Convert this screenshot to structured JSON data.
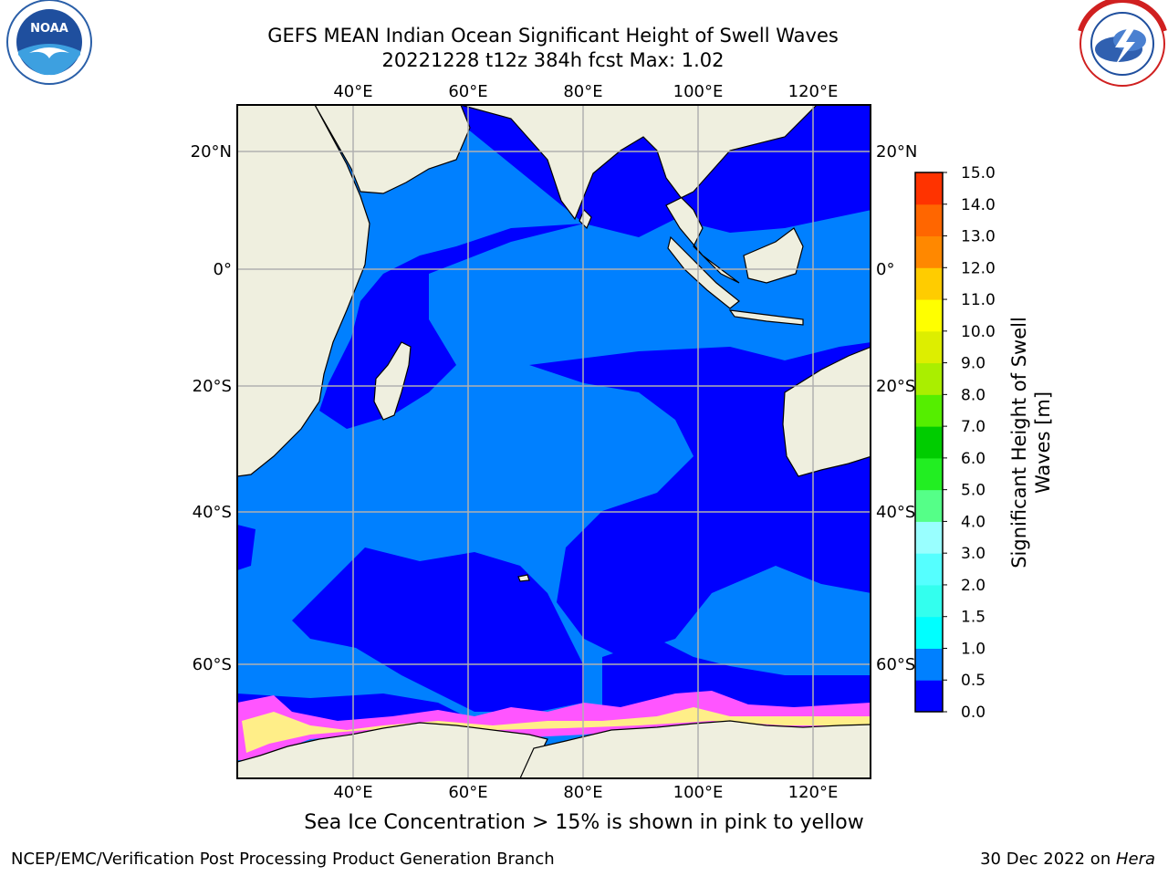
{
  "title_line1": "GEFS MEAN Indian Ocean Significant Height of Swell Waves",
  "title_line2": "20221228 t12z 384h fcst   Max: 1.02",
  "footer_note": "Sea Ice Concentration > 15% is shown in pink to yellow",
  "footer_left": "NCEP/EMC/Verification Post Processing Product Generation Branch",
  "footer_date": "30 Dec 2022 on ",
  "footer_host": "Hera",
  "logo_left": {
    "label": "NOAA",
    "ring_text": "NATIONAL OCEANIC AND ATMOSPHERIC ADMINISTRATION · U.S. DEPARTMENT OF COMMERCE"
  },
  "logo_right": {
    "ring_text": "NATIONAL WEATHER SERVICE"
  },
  "map": {
    "lon_labels": [
      "40°E",
      "60°E",
      "80°E",
      "100°E",
      "120°E"
    ],
    "lat_labels_left": [
      "20°N",
      "0°",
      "20°S",
      "40°S",
      "60°S"
    ],
    "lat_labels_right": [
      "20°N",
      "0°",
      "20°S",
      "40°S",
      "60°S"
    ],
    "colors": {
      "land": "#efefdf",
      "ocean_low": "#0000ff",
      "ocean_mid": "#0080ff",
      "ice_pink": "#ff55ff",
      "ice_yellow": "#ffee88",
      "grid": "#b0b0b0"
    }
  },
  "colorbar": {
    "label_line1": "Significant Height of Swell",
    "label_line2": "Waves [m]",
    "ticks": [
      "0.0",
      "0.5",
      "1.0",
      "1.5",
      "2.0",
      "3.0",
      "4.0",
      "5.0",
      "6.0",
      "7.0",
      "8.0",
      "9.0",
      "10.0",
      "11.0",
      "12.0",
      "13.0",
      "14.0",
      "15.0"
    ],
    "colors": [
      "#0000ff",
      "#0080ff",
      "#00ffff",
      "#33ffee",
      "#55ffff",
      "#99ffff",
      "#55ff88",
      "#22ee22",
      "#00cc00",
      "#55ee00",
      "#aaee00",
      "#ddee00",
      "#ffff00",
      "#ffcc00",
      "#ff8800",
      "#ff6600",
      "#ff3300"
    ]
  }
}
